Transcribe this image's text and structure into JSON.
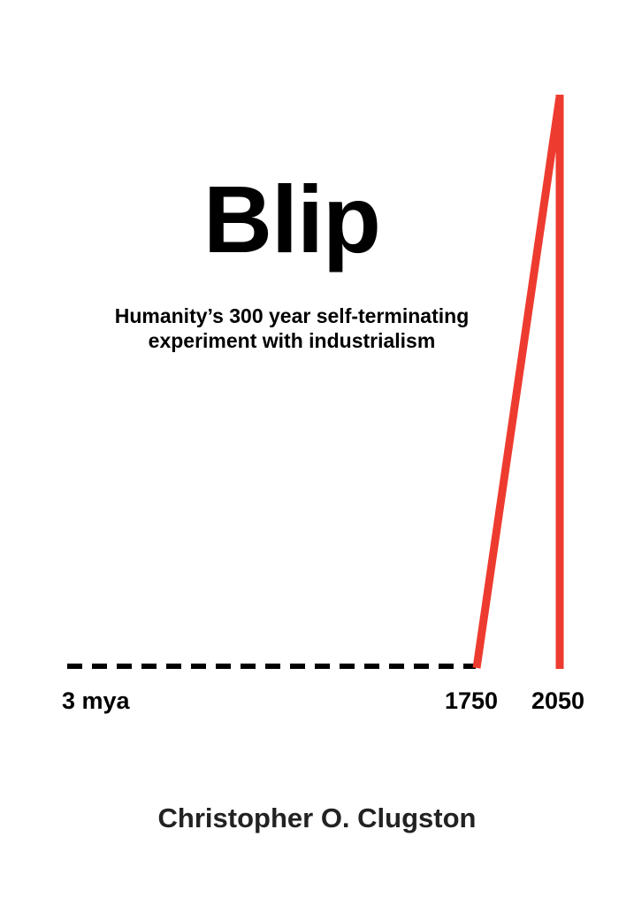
{
  "cover": {
    "title": "Blip",
    "subtitle_line1": "Humanity’s 300 year self-terminating",
    "subtitle_line2": "experiment with industrialism",
    "author": "Christopher O. Clugston"
  },
  "graphic": {
    "baseline_color": "#000000",
    "spike_color": "#ee3b2f",
    "labels": {
      "start": "3 mya",
      "mid": "1750",
      "end": "2050"
    }
  }
}
